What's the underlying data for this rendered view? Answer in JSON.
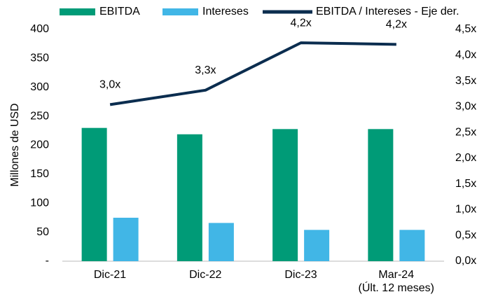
{
  "chart_data": {
    "type": "bar",
    "y_label": "Millones de USD",
    "categories": [
      "Dic-21",
      "Dic-22",
      "Dic-23",
      "Mar-24\n(Últ. 12 meses)"
    ],
    "series": [
      {
        "name": "EBITDA",
        "type": "bar",
        "color": "#009b77",
        "values": [
          230,
          219,
          228,
          228
        ]
      },
      {
        "name": "Intereses",
        "type": "bar",
        "color": "#41b6e6",
        "values": [
          75,
          66,
          54,
          54
        ]
      },
      {
        "name": "EBITDA / Intereses - Eje der.",
        "type": "line",
        "axis": "y2",
        "color": "#0b2d4f",
        "values": [
          3.04,
          3.32,
          4.24,
          4.21
        ],
        "value_labels": [
          "3,0x",
          "3,3x",
          "4,2x",
          "4,2x"
        ]
      }
    ],
    "ylim": [
      0,
      400
    ],
    "yticks": [
      {
        "value": 0,
        "label": "-"
      },
      50,
      100,
      150,
      200,
      250,
      300,
      350,
      400
    ],
    "y2lim": [
      0,
      4.5
    ],
    "y2ticks": [
      {
        "value": 0,
        "label": "0,0x"
      },
      {
        "value": 0.5,
        "label": "0,5x"
      },
      {
        "value": 1,
        "label": "1,0x"
      },
      {
        "value": 1.5,
        "label": "1,5x"
      },
      {
        "value": 2,
        "label": "2,0x"
      },
      {
        "value": 2.5,
        "label": "2,5x"
      },
      {
        "value": 3,
        "label": "3,0x"
      },
      {
        "value": 3.5,
        "label": "3,5x"
      },
      {
        "value": 4,
        "label": "4,0x"
      },
      {
        "value": 4.5,
        "label": "4,5x"
      }
    ],
    "grid": false,
    "legend": "top"
  }
}
